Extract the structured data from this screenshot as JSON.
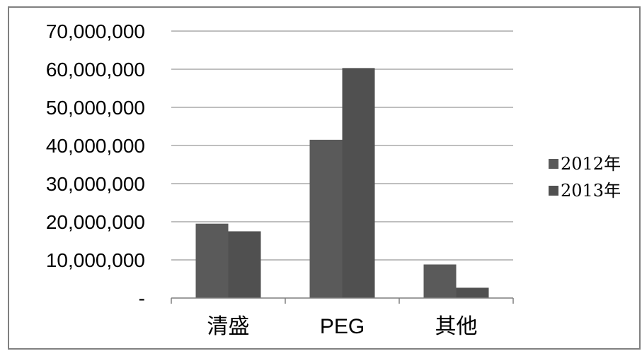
{
  "chart_data": {
    "type": "bar",
    "categories": [
      "清盛",
      "PEG",
      "其他"
    ],
    "series": [
      {
        "name": "2012年",
        "values": [
          19500000,
          41500000,
          8800000
        ],
        "color": "#5a5a5a"
      },
      {
        "name": "2013年",
        "values": [
          17500000,
          60300000,
          2700000
        ],
        "color": "#505050"
      }
    ],
    "y_tick_labels": [
      "-",
      "10,000,000",
      "20,000,000",
      "30,000,000",
      "40,000,000",
      "50,000,000",
      "60,000,000",
      "70,000,000"
    ],
    "ylim": [
      0,
      70000000
    ],
    "y_tick_step": 10000000,
    "grid": true,
    "legend_position": "right",
    "grid_color": "#7f7f7f",
    "axis_color": "#7f7f7f"
  }
}
